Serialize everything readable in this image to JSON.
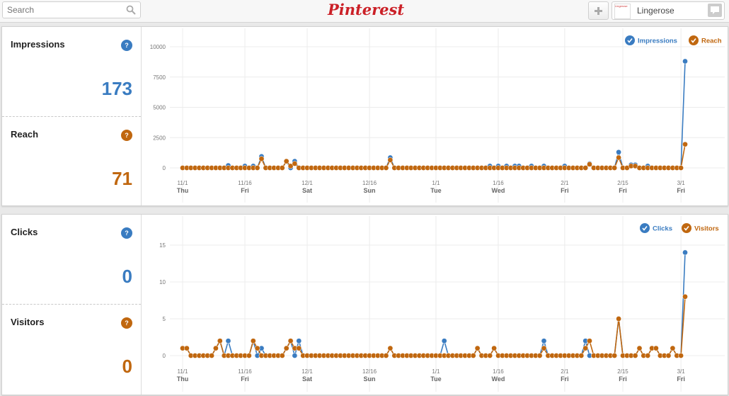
{
  "search": {
    "placeholder": "Search",
    "value": ""
  },
  "logo": {
    "text": "Pinterest"
  },
  "user": {
    "name": "Lingerose",
    "avatar_text": "Lingerose"
  },
  "colors": {
    "blue": "#3a7cc1",
    "orange": "#c0670f",
    "logo_red": "#cb2027"
  },
  "panels": [
    {
      "stats": [
        {
          "label": "Impressions",
          "help": "?",
          "value": "173",
          "color": "#3a7cc1"
        },
        {
          "label": "Reach",
          "help": "?",
          "value": "71",
          "color": "#c0670f"
        }
      ],
      "legend": [
        "Impressions",
        "Reach"
      ]
    },
    {
      "stats": [
        {
          "label": "Clicks",
          "help": "?",
          "value": "0",
          "color": "#3a7cc1"
        },
        {
          "label": "Visitors",
          "help": "?",
          "value": "0",
          "color": "#c0670f"
        }
      ],
      "legend": [
        "Clicks",
        "Visitors"
      ]
    }
  ],
  "chart_data": [
    {
      "type": "line",
      "x_start": "Nov 1",
      "day_count": 122,
      "x_ticks": [
        {
          "day": 0,
          "date": "11/1",
          "weekday": "Thu"
        },
        {
          "day": 15,
          "date": "11/16",
          "weekday": "Fri"
        },
        {
          "day": 30,
          "date": "12/1",
          "weekday": "Sat"
        },
        {
          "day": 45,
          "date": "12/16",
          "weekday": "Sun"
        },
        {
          "day": 61,
          "date": "1/1",
          "weekday": "Tue"
        },
        {
          "day": 76,
          "date": "1/16",
          "weekday": "Wed"
        },
        {
          "day": 92,
          "date": "2/1",
          "weekday": "Fri"
        },
        {
          "day": 106,
          "date": "2/15",
          "weekday": "Fri"
        },
        {
          "day": 120,
          "date": "3/1",
          "weekday": "Fri"
        }
      ],
      "y_ticks": [
        "10000",
        "7500",
        "5000",
        "2500",
        "0"
      ],
      "ylim": [
        0,
        10000
      ],
      "legend_position": "top-right",
      "series": [
        {
          "name": "Impressions",
          "color": "#3a7cc1",
          "points": [
            [
              11,
              200
            ],
            [
              15,
              150
            ],
            [
              17,
              150
            ],
            [
              19,
              950
            ],
            [
              25,
              550
            ],
            [
              27,
              550
            ],
            [
              50,
              850
            ],
            [
              74,
              150
            ],
            [
              76,
              150
            ],
            [
              78,
              150
            ],
            [
              80,
              150
            ],
            [
              81,
              150
            ],
            [
              84,
              150
            ],
            [
              87,
              150
            ],
            [
              92,
              150
            ],
            [
              98,
              350
            ],
            [
              105,
              1300
            ],
            [
              108,
              250
            ],
            [
              109,
              250
            ],
            [
              112,
              150
            ],
            [
              121,
              8800
            ]
          ],
          "default": 0
        },
        {
          "name": "Reach",
          "color": "#c0670f",
          "points": [
            [
              19,
              750
            ],
            [
              25,
              550
            ],
            [
              26,
              150
            ],
            [
              27,
              350
            ],
            [
              50,
              650
            ],
            [
              98,
              300
            ],
            [
              105,
              850
            ],
            [
              108,
              150
            ],
            [
              109,
              150
            ],
            [
              121,
              1950
            ]
          ],
          "default": 0
        }
      ]
    },
    {
      "type": "line",
      "x_start": "Nov 1",
      "day_count": 122,
      "x_ticks": [
        {
          "day": 0,
          "date": "11/1",
          "weekday": "Thu"
        },
        {
          "day": 15,
          "date": "11/16",
          "weekday": "Fri"
        },
        {
          "day": 30,
          "date": "12/1",
          "weekday": "Sat"
        },
        {
          "day": 45,
          "date": "12/16",
          "weekday": "Sun"
        },
        {
          "day": 61,
          "date": "1/1",
          "weekday": "Tue"
        },
        {
          "day": 76,
          "date": "1/16",
          "weekday": "Wed"
        },
        {
          "day": 92,
          "date": "2/1",
          "weekday": "Fri"
        },
        {
          "day": 106,
          "date": "2/15",
          "weekday": "Fri"
        },
        {
          "day": 120,
          "date": "3/1",
          "weekday": "Fri"
        }
      ],
      "y_ticks": [
        "15",
        "10",
        "5",
        "0"
      ],
      "ylim": [
        0,
        17.5
      ],
      "legend_position": "top-right",
      "series": [
        {
          "name": "Clicks",
          "color": "#3a7cc1",
          "points": [
            [
              0,
              1
            ],
            [
              1,
              1
            ],
            [
              8,
              1
            ],
            [
              9,
              2
            ],
            [
              11,
              2
            ],
            [
              17,
              2
            ],
            [
              19,
              1
            ],
            [
              25,
              1
            ],
            [
              26,
              2
            ],
            [
              28,
              2
            ],
            [
              50,
              1
            ],
            [
              63,
              2
            ],
            [
              71,
              1
            ],
            [
              75,
              1
            ],
            [
              87,
              2
            ],
            [
              97,
              2
            ],
            [
              105,
              5
            ],
            [
              110,
              1
            ],
            [
              113,
              1
            ],
            [
              114,
              1
            ],
            [
              118,
              1
            ],
            [
              121,
              14
            ]
          ],
          "default": 0
        },
        {
          "name": "Visitors",
          "color": "#c0670f",
          "points": [
            [
              0,
              1
            ],
            [
              1,
              1
            ],
            [
              8,
              1
            ],
            [
              9,
              2
            ],
            [
              17,
              2
            ],
            [
              18,
              1
            ],
            [
              25,
              1
            ],
            [
              26,
              2
            ],
            [
              27,
              1
            ],
            [
              28,
              1
            ],
            [
              50,
              1
            ],
            [
              71,
              1
            ],
            [
              75,
              1
            ],
            [
              87,
              1
            ],
            [
              97,
              1
            ],
            [
              98,
              2
            ],
            [
              105,
              5
            ],
            [
              110,
              1
            ],
            [
              113,
              1
            ],
            [
              114,
              1
            ],
            [
              118,
              1
            ],
            [
              121,
              8
            ]
          ],
          "default": 0
        }
      ]
    }
  ]
}
